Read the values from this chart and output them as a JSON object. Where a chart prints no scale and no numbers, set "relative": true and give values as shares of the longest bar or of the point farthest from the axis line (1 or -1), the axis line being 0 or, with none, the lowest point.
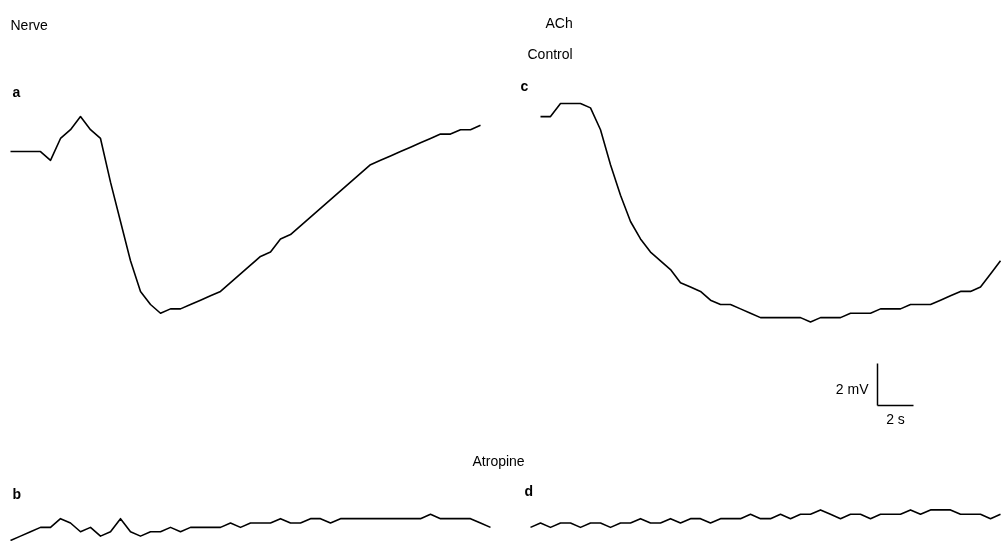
{
  "chart_data": {
    "type": "line",
    "relative": true,
    "tick_labels": false,
    "annotations": [
      "Nerve",
      "ACh",
      "Control",
      "a",
      "c",
      "2 mV",
      "2 s",
      "Atropine",
      "b",
      "d"
    ],
    "categories": [
      null,
      null,
      null,
      null,
      null,
      null,
      null,
      null,
      null,
      null,
      null,
      null,
      null,
      null,
      null,
      null,
      null,
      null,
      null,
      null,
      null,
      null,
      null,
      null,
      null,
      null,
      null,
      null,
      null,
      null,
      null,
      null,
      null,
      null,
      null,
      null,
      null,
      null,
      null,
      null,
      null,
      null,
      null,
      null,
      null,
      null,
      null,
      null,
      null,
      null,
      null,
      null,
      null,
      null,
      null,
      null,
      null,
      null,
      null,
      null,
      null,
      null,
      null,
      null,
      null,
      null,
      null,
      null,
      null,
      null,
      null,
      null,
      null,
      null,
      null,
      null,
      null,
      null,
      null,
      null,
      null,
      null,
      null,
      null,
      null,
      null,
      null,
      null,
      null,
      null,
      null,
      null,
      null,
      null,
      null,
      null,
      null,
      null,
      null,
      null,
      null
    ],
    "series": [
      {
        "color": "#000000",
        "values": [
          null,
          0.89,
          0.89,
          0.89,
          0.89,
          0.87,
          0.92,
          0.94,
          0.97,
          0.94,
          0.92,
          0.82,
          0.73,
          0.64,
          0.57,
          0.54,
          0.52,
          0.53,
          0.53,
          0.54,
          0.55,
          0.56,
          0.57,
          0.59,
          0.61,
          0.63,
          0.65,
          0.66,
          0.69,
          0.7,
          0.72,
          0.74,
          0.76,
          0.78,
          0.8,
          0.82,
          0.84,
          0.86,
          0.87,
          0.88,
          0.89,
          0.9,
          0.91,
          0.92,
          0.93,
          0.93,
          0.94,
          0.94,
          0.95,
          null,
          null,
          null,
          null,
          null,
          null,
          null,
          null,
          null,
          null,
          null,
          null,
          null,
          null,
          null,
          null,
          null,
          null,
          null,
          null,
          null,
          null,
          null,
          null,
          null,
          null,
          null,
          null,
          null,
          null,
          null,
          null,
          null,
          null,
          null,
          null,
          null,
          null,
          null,
          null,
          null,
          null,
          null,
          null,
          null,
          null,
          null,
          null,
          null,
          null,
          null,
          null
        ]
      },
      {
        "color": "#000000",
        "values": [
          null,
          null,
          null,
          null,
          null,
          null,
          null,
          null,
          null,
          null,
          null,
          null,
          null,
          null,
          null,
          null,
          null,
          null,
          null,
          null,
          null,
          null,
          null,
          null,
          null,
          null,
          null,
          null,
          null,
          null,
          null,
          null,
          null,
          null,
          null,
          null,
          null,
          null,
          null,
          null,
          null,
          null,
          null,
          null,
          null,
          null,
          null,
          null,
          null,
          null,
          null,
          null,
          null,
          null,
          0.97,
          0.97,
          1.0,
          1.0,
          1.0,
          0.99,
          0.94,
          0.86,
          0.79,
          0.73,
          0.69,
          0.66,
          0.64,
          0.62,
          0.59,
          0.58,
          0.57,
          0.55,
          0.54,
          0.54,
          0.53,
          0.52,
          0.51,
          0.51,
          0.51,
          0.51,
          0.51,
          0.5,
          0.51,
          0.51,
          0.51,
          0.52,
          0.52,
          0.52,
          0.53,
          0.53,
          0.53,
          0.54,
          0.54,
          0.54,
          0.55,
          0.56,
          0.57,
          0.57,
          0.58,
          0.61,
          0.64
        ]
      },
      {
        "color": "#000000",
        "values": [
          null,
          0.0,
          0.01,
          0.02,
          0.03,
          0.03,
          0.05,
          0.04,
          0.02,
          0.03,
          0.01,
          0.02,
          0.05,
          0.02,
          0.01,
          0.02,
          0.02,
          0.03,
          0.02,
          0.03,
          0.03,
          0.03,
          0.03,
          0.04,
          0.03,
          0.04,
          0.04,
          0.04,
          0.05,
          0.04,
          0.04,
          0.05,
          0.05,
          0.04,
          0.05,
          0.05,
          0.05,
          0.05,
          0.05,
          0.05,
          0.05,
          0.05,
          0.05,
          0.06,
          0.05,
          0.05,
          0.05,
          0.05,
          0.04,
          0.03,
          null,
          null,
          null,
          null,
          null,
          null,
          null,
          null,
          null,
          null,
          null,
          null,
          null,
          null,
          null,
          null,
          null,
          null,
          null,
          null,
          null,
          null,
          null,
          null,
          null,
          null,
          null,
          null,
          null,
          null,
          null,
          null,
          null,
          null,
          null,
          null,
          null,
          null,
          null,
          null,
          null,
          null,
          null,
          null,
          null,
          null,
          null,
          null,
          null,
          null,
          null
        ]
      },
      {
        "color": "#000000",
        "values": [
          null,
          null,
          null,
          null,
          null,
          null,
          null,
          null,
          null,
          null,
          null,
          null,
          null,
          null,
          null,
          null,
          null,
          null,
          null,
          null,
          null,
          null,
          null,
          null,
          null,
          null,
          null,
          null,
          null,
          null,
          null,
          null,
          null,
          null,
          null,
          null,
          null,
          null,
          null,
          null,
          null,
          null,
          null,
          null,
          null,
          null,
          null,
          null,
          null,
          null,
          null,
          null,
          null,
          0.03,
          0.04,
          0.03,
          0.04,
          0.04,
          0.03,
          0.04,
          0.04,
          0.03,
          0.04,
          0.04,
          0.05,
          0.04,
          0.04,
          0.05,
          0.04,
          0.05,
          0.05,
          0.04,
          0.05,
          0.05,
          0.05,
          0.06,
          0.05,
          0.05,
          0.06,
          0.05,
          0.06,
          0.06,
          0.07,
          0.06,
          0.05,
          0.06,
          0.06,
          0.05,
          0.06,
          0.06,
          0.06,
          0.07,
          0.06,
          0.07,
          0.07,
          0.07,
          0.06,
          0.06,
          0.06,
          0.05,
          0.06
        ]
      }
    ]
  }
}
